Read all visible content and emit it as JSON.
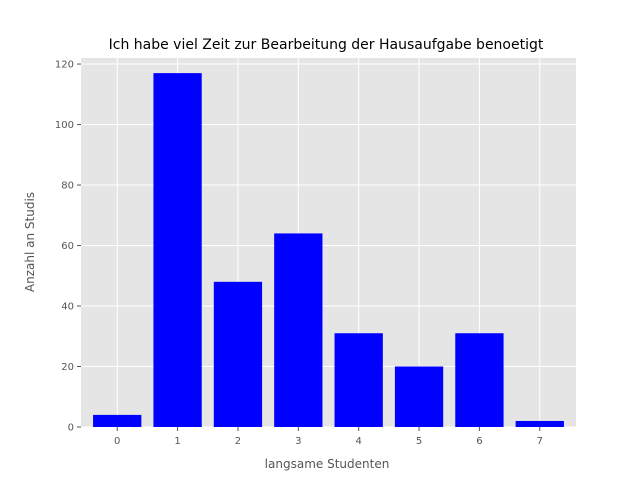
{
  "chart_data": {
    "type": "bar",
    "title": "Ich habe viel Zeit zur Bearbeitung der Hausaufgabe benoetigt",
    "xlabel": "langsame Studenten",
    "ylabel": "Anzahl an Studis",
    "categories": [
      "0",
      "1",
      "2",
      "3",
      "4",
      "5",
      "6",
      "7"
    ],
    "values": [
      4,
      117,
      48,
      64,
      31,
      20,
      31,
      2
    ],
    "ylim": [
      0,
      122
    ],
    "yticks": [
      0,
      20,
      40,
      60,
      80,
      100,
      120
    ],
    "grid": true,
    "bar_color": "#0000ff",
    "plot_background": "#e5e5e5",
    "grid_color": "#ffffff"
  }
}
